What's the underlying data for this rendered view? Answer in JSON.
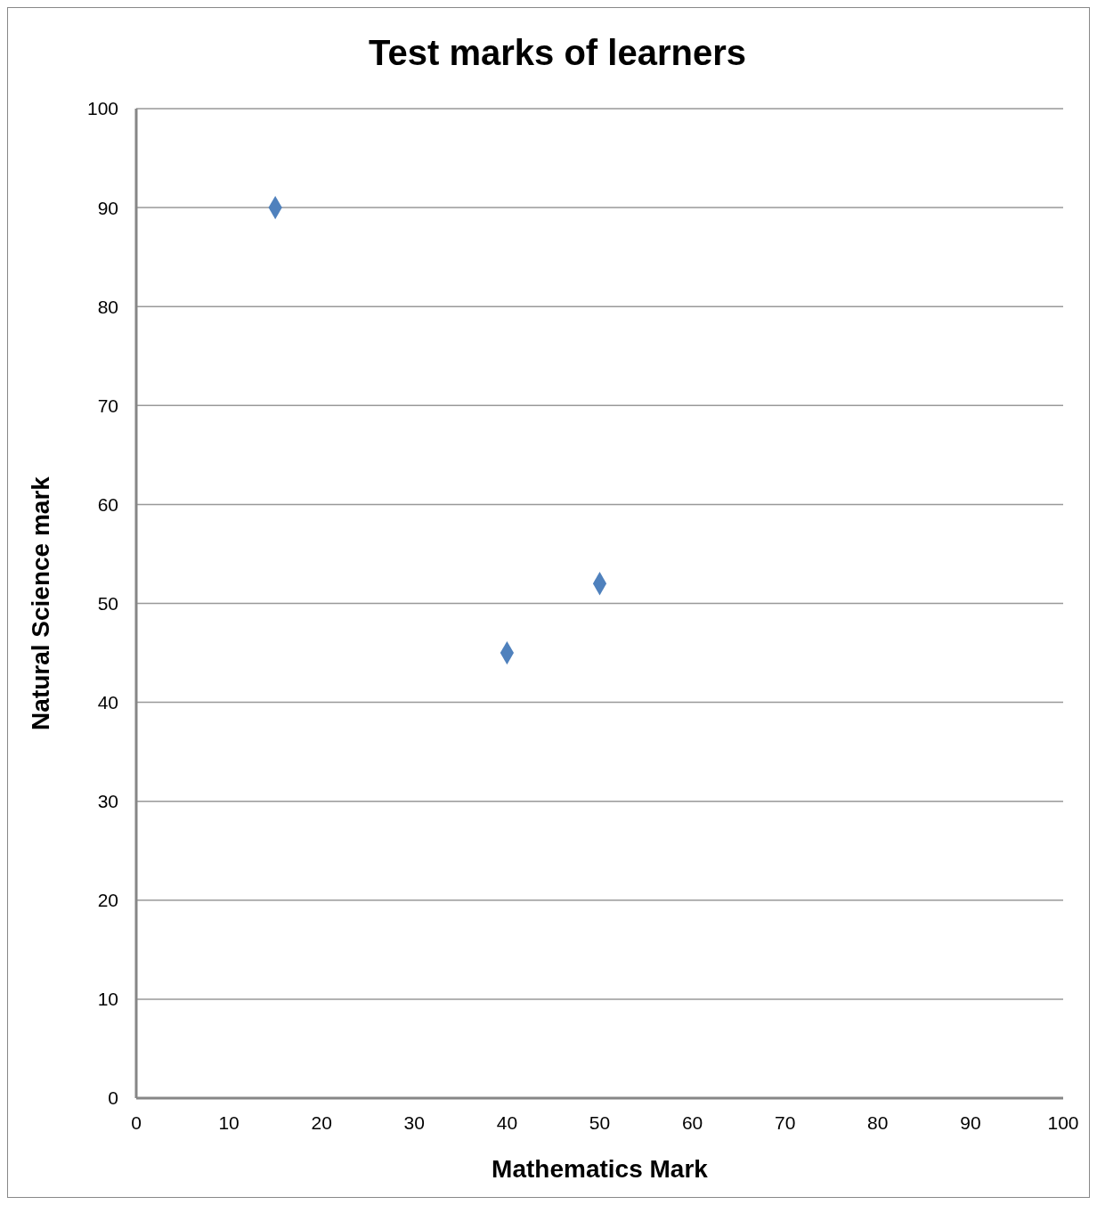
{
  "chart_data": {
    "type": "scatter",
    "title": "Test marks of learners",
    "xlabel": "Mathematics Mark",
    "ylabel": "Natural Science mark",
    "x": [
      15,
      40,
      50
    ],
    "values": [
      90,
      45,
      52
    ],
    "color": "#4f81bd",
    "marker": "diamond",
    "xlim": [
      0,
      100
    ],
    "xticks": [
      0,
      10,
      20,
      30,
      40,
      50,
      60,
      70,
      80,
      90,
      100
    ],
    "ylim": [
      0,
      100
    ],
    "yticks": [
      0,
      10,
      20,
      30,
      40,
      50,
      60,
      70,
      80,
      90,
      100
    ],
    "grid": "y",
    "legend": false
  }
}
